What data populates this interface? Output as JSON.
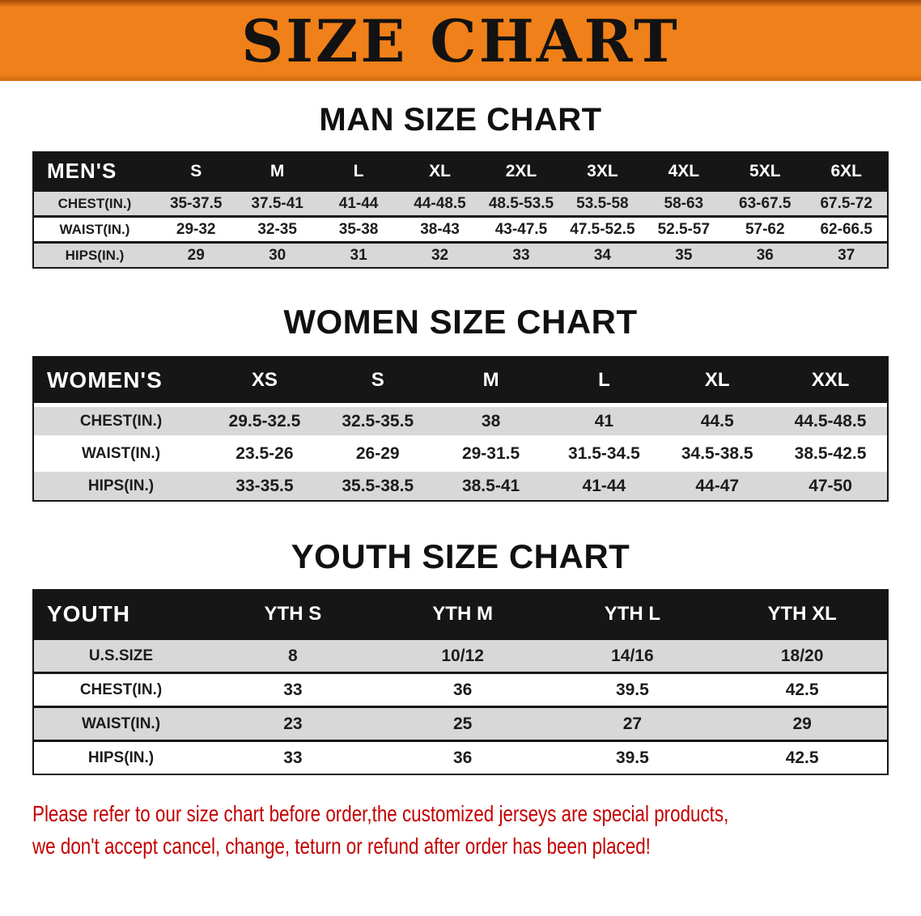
{
  "banner": {
    "title": "SIZE CHART"
  },
  "colors": {
    "banner_orange": "#F08019",
    "banner_edge": "#A04A05",
    "table_black": "#161616",
    "row_gray": "#D8D8D8",
    "footer_red": "#C40000",
    "title_black": "#121212"
  },
  "sections": [
    {
      "id": "men",
      "heading": "MAN SIZE CHART",
      "table": {
        "header": [
          "MEN'S",
          "S",
          "M",
          "L",
          "XL",
          "2XL",
          "3XL",
          "4XL",
          "5XL",
          "6XL"
        ],
        "rows": [
          {
            "label": "CHEST(IN.)",
            "values": [
              "35-37.5",
              "37.5-41",
              "41-44",
              "44-48.5",
              "48.5-53.5",
              "53.5-58",
              "58-63",
              "63-67.5",
              "67.5-72"
            ]
          },
          {
            "label": "WAIST(IN.)",
            "values": [
              "29-32",
              "32-35",
              "35-38",
              "38-43",
              "43-47.5",
              "47.5-52.5",
              "52.5-57",
              "57-62",
              "62-66.5"
            ]
          },
          {
            "label": "HIPS(IN.)",
            "values": [
              "29",
              "30",
              "31",
              "32",
              "33",
              "34",
              "35",
              "36",
              "37"
            ]
          }
        ]
      }
    },
    {
      "id": "women",
      "heading": "WOMEN SIZE CHART",
      "table": {
        "header": [
          "WOMEN'S",
          "XS",
          "S",
          "M",
          "L",
          "XL",
          "XXL"
        ],
        "rows": [
          {
            "label": "CHEST(IN.)",
            "values": [
              "29.5-32.5",
              "32.5-35.5",
              "38",
              "41",
              "44.5",
              "44.5-48.5"
            ]
          },
          {
            "label": "WAIST(IN.)",
            "values": [
              "23.5-26",
              "26-29",
              "29-31.5",
              "31.5-34.5",
              "34.5-38.5",
              "38.5-42.5"
            ]
          },
          {
            "label": "HIPS(IN.)",
            "values": [
              "33-35.5",
              "35.5-38.5",
              "38.5-41",
              "41-44",
              "44-47",
              "47-50"
            ]
          }
        ]
      }
    },
    {
      "id": "youth",
      "heading": "YOUTH SIZE CHART",
      "table": {
        "header": [
          "YOUTH",
          "YTH S",
          "YTH M",
          "YTH L",
          "YTH XL"
        ],
        "rows": [
          {
            "label": "U.S.SIZE",
            "values": [
              "8",
              "10/12",
              "14/16",
              "18/20"
            ]
          },
          {
            "label": "CHEST(IN.)",
            "values": [
              "33",
              "36",
              "39.5",
              "42.5"
            ]
          },
          {
            "label": "WAIST(IN.)",
            "values": [
              "23",
              "25",
              "27",
              "29"
            ]
          },
          {
            "label": "HIPS(IN.)",
            "values": [
              "33",
              "36",
              "39.5",
              "42.5"
            ]
          }
        ]
      }
    }
  ],
  "footer": {
    "line1": "Please refer to our size chart before order,the customized jerseys are special products,",
    "line2": "we don't accept cancel, change, teturn or refund after order has been placed!"
  }
}
